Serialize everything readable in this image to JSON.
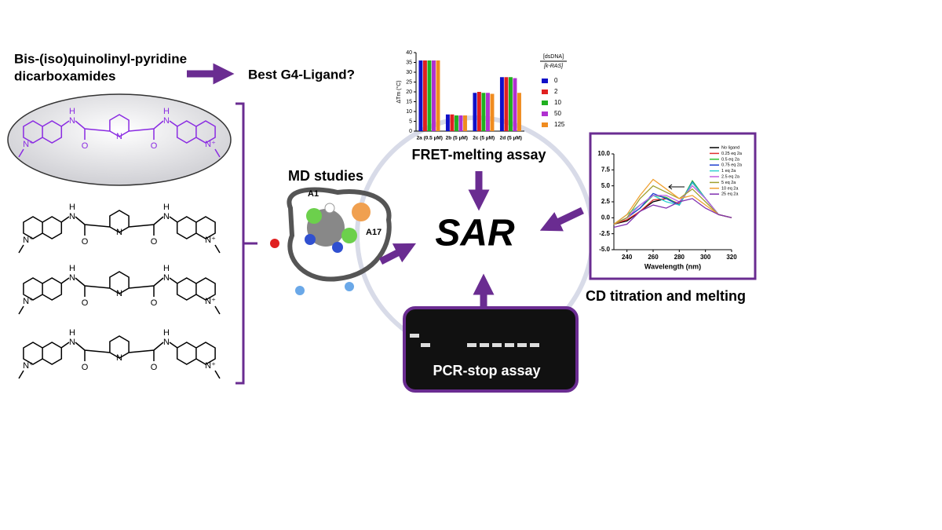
{
  "header": {
    "title_line1": "Bis-(iso)quinolinyl-pyridine",
    "title_line2": "dicarboxamides",
    "question": "Best G4-Ligand?"
  },
  "center_label": "SAR",
  "molecules": [
    {
      "atoms": [
        "H",
        "N",
        "O",
        "N",
        "O",
        "N",
        "H",
        "N⁺",
        "N⁺"
      ]
    },
    {
      "atoms": [
        "H",
        "N",
        "O",
        "N",
        "O",
        "N",
        "H",
        "N⁺",
        "N⁺"
      ]
    },
    {
      "atoms": [
        "H",
        "N",
        "O",
        "N",
        "O",
        "N",
        "H",
        "N⁺",
        "N⁺"
      ]
    },
    {
      "atoms": [
        "H",
        "N",
        "O",
        "N",
        "O",
        "N",
        "H",
        "N⁺",
        "N⁺"
      ]
    }
  ],
  "md": {
    "label": "MD studies",
    "annotations": [
      "A1",
      "A17"
    ]
  },
  "pcr": {
    "label": "PCR-stop assay"
  },
  "fret": {
    "label": "FRET-melting assay",
    "chart_data": {
      "type": "bar",
      "y_label": "ΔTm (°C)",
      "categories": [
        "2a (0.5 µM)",
        "2b (5 µM)",
        "2c (5 µM)",
        "2d (5 µM)"
      ],
      "legend_title": [
        "[dsDNA]",
        "[k-RAS]"
      ],
      "series": [
        {
          "name": "0",
          "color": "#1010c8",
          "values": [
            36,
            8.5,
            19.5,
            27.5
          ]
        },
        {
          "name": "2",
          "color": "#e02020",
          "values": [
            36,
            8.5,
            20,
            27.5
          ]
        },
        {
          "name": "10",
          "color": "#20b020",
          "values": [
            36,
            8,
            19.5,
            27.5
          ]
        },
        {
          "name": "50",
          "color": "#b030d0",
          "values": [
            36,
            8,
            19.5,
            27
          ]
        },
        {
          "name": "125",
          "color": "#f08c20",
          "values": [
            36,
            8,
            19,
            19.5
          ]
        }
      ],
      "ylim": [
        0,
        40
      ],
      "yticks": [
        0,
        5,
        10,
        15,
        20,
        25,
        30,
        35,
        40
      ]
    }
  },
  "cd": {
    "label": "CD titration and melting",
    "chart_data": {
      "type": "line",
      "x_label": "Wavelength (nm)",
      "x": [
        230,
        240,
        250,
        260,
        270,
        280,
        290,
        300,
        310,
        320
      ],
      "series": [
        {
          "name": "No ligand",
          "color": "#000000",
          "values": [
            -1,
            -0.5,
            1,
            2.5,
            3,
            2,
            5.5,
            3,
            0.5,
            0
          ]
        },
        {
          "name": "0.25 eq 2a",
          "color": "#e03030",
          "values": [
            -1,
            -0.3,
            1,
            2.8,
            3,
            2.2,
            5.5,
            3,
            0.5,
            0
          ]
        },
        {
          "name": "0.5 eq 2a",
          "color": "#30c030",
          "values": [
            -1,
            0,
            1.5,
            3.5,
            3.2,
            2,
            5.8,
            3,
            0.5,
            0
          ]
        },
        {
          "name": "0.75 eq 2a",
          "color": "#2040d0",
          "values": [
            -1,
            0,
            1.5,
            3.8,
            3,
            2,
            5.6,
            3,
            0.5,
            0
          ]
        },
        {
          "name": "1 eq 2a",
          "color": "#30d0d0",
          "values": [
            -1,
            0.5,
            2,
            3.5,
            2.5,
            2,
            5.5,
            3,
            0.5,
            0
          ]
        },
        {
          "name": "2.5 eq 2a",
          "color": "#c060e0",
          "values": [
            -1,
            0,
            2,
            3.5,
            3.5,
            2.5,
            5,
            3,
            0.5,
            0
          ]
        },
        {
          "name": "5 eq 2a",
          "color": "#a0a030",
          "values": [
            -1,
            0,
            3,
            5,
            4,
            3,
            4.5,
            2.5,
            0.5,
            0
          ]
        },
        {
          "name": "10 eq 2a",
          "color": "#f0a030",
          "values": [
            -1,
            0.5,
            3.5,
            6,
            4.5,
            3,
            3.5,
            2,
            0.5,
            0
          ]
        },
        {
          "name": "25 eq 2a",
          "color": "#8030b0",
          "values": [
            -1.5,
            -1,
            1,
            2,
            1.5,
            2.5,
            3,
            1.5,
            0.5,
            0
          ]
        }
      ],
      "xlim": [
        230,
        320
      ],
      "xticks": [
        240,
        260,
        280,
        300,
        320
      ],
      "ylim": [
        -5,
        10
      ],
      "yticks": [
        {
          "value": -5,
          "label": "-5.0"
        },
        {
          "value": -2.5,
          "label": "-2.5"
        },
        {
          "value": 0,
          "label": "0.0"
        },
        {
          "value": 2.5,
          "label": "2.5"
        },
        {
          "value": 5,
          "label": "5.0"
        },
        {
          "value": 7.5,
          "label": "7.5"
        },
        {
          "value": 10,
          "label": "10.0"
        }
      ]
    }
  }
}
